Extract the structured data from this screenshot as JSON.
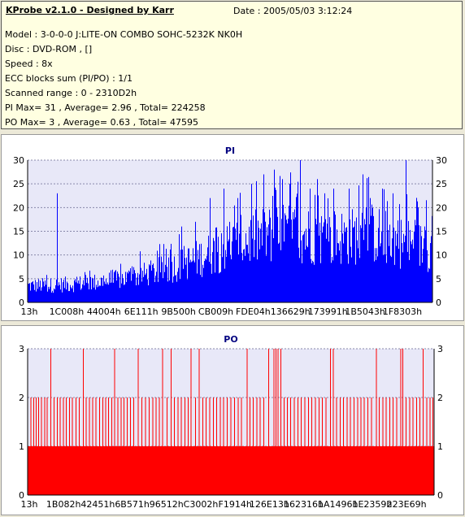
{
  "header": {
    "title": "KProbe v2.1.0 - Designed by Karr",
    "date": "Date : 2005/05/03 3:12:24",
    "lines": [
      "Model : 3-0-0-0 J:LITE-ON COMBO SOHC-5232K NK0H",
      "Disc : DVD-ROM ,  []",
      "Speed : 8x",
      "ECC blocks sum (PI/PO) : 1/1",
      "Scanned range : 0 - 2310D2h",
      "PI Max= 31 , Average= 2.96 , Total= 224258",
      "PO Max= 3 , Average= 0.63 , Total= 47595"
    ]
  },
  "colors": {
    "pi": "#0000ff",
    "po": "#ff0000",
    "plot_bg": "#e8e8f8",
    "grid": "#8888aa"
  },
  "chart_data": [
    {
      "type": "bar",
      "title": "PI",
      "xlabel": "",
      "ylabel": "",
      "ylim": [
        0,
        30
      ],
      "y_ticks": [
        0,
        5,
        10,
        15,
        20,
        25,
        30
      ],
      "x_tick_labels": [
        "13h",
        "1C008h",
        "44004h",
        "6E111h",
        "9B500h",
        "CB009h",
        "FDE04h",
        "136629h",
        "173991h",
        "1B5043h",
        "1F8303h"
      ],
      "profile": [
        [
          0,
          3.5
        ],
        [
          5,
          3.6
        ],
        [
          10,
          3.8
        ],
        [
          15,
          4.1
        ],
        [
          20,
          4.5
        ],
        [
          25,
          5.2
        ],
        [
          30,
          6.1
        ],
        [
          35,
          7.2
        ],
        [
          40,
          8.6
        ],
        [
          45,
          10.3
        ],
        [
          50,
          12.0
        ],
        [
          55,
          13.4
        ],
        [
          60,
          14.3
        ],
        [
          65,
          14.6
        ],
        [
          70,
          14.2
        ],
        [
          75,
          13.6
        ],
        [
          80,
          13.9
        ],
        [
          85,
          14.6
        ],
        [
          90,
          13.2
        ],
        [
          95,
          12.0
        ],
        [
          100,
          11.5
        ]
      ],
      "peaks": [
        [
          7.3,
          23
        ],
        [
          67.4,
          31
        ],
        [
          71.7,
          26
        ],
        [
          61.0,
          28
        ],
        [
          48.4,
          24
        ],
        [
          58.3,
          27
        ],
        [
          64.7,
          25
        ],
        [
          75.6,
          24
        ],
        [
          79.5,
          24
        ],
        [
          84.7,
          22
        ],
        [
          87.8,
          24
        ],
        [
          93.5,
          30
        ],
        [
          45.0,
          22
        ],
        [
          52.0,
          22
        ],
        [
          55.4,
          25
        ],
        [
          63.0,
          26
        ],
        [
          69.9,
          24
        ],
        [
          73.4,
          23
        ],
        [
          82.9,
          27
        ],
        [
          90.3,
          23
        ],
        [
          96.5,
          20
        ],
        [
          41.5,
          17
        ],
        [
          38.0,
          16
        ]
      ]
    },
    {
      "type": "bar",
      "title": "PO",
      "xlabel": "",
      "ylabel": "",
      "ylim": [
        0,
        3
      ],
      "y_ticks": [
        0,
        1,
        2,
        3
      ],
      "x_tick_labels": [
        "13h",
        "1B082h",
        "42451h",
        "6B571h",
        "96512h",
        "C3002h",
        "F1914h",
        "126E13h",
        "162316h",
        "1A1496h",
        "1E2359h",
        "223E69h"
      ],
      "baseline": 1,
      "spikes_3": [
        5.6,
        13.6,
        21.3,
        27.1,
        33.1,
        35.2,
        40.1,
        42.1,
        53.9,
        59.2,
        60.5,
        61.0,
        61.5,
        62.2,
        74.4,
        75.1,
        85.7,
        91.7,
        92.2,
        97.2
      ],
      "spikes_2": [
        0.7,
        1.4,
        2.0,
        2.6,
        3.3,
        4.1,
        4.7,
        6.4,
        7.2,
        7.9,
        8.7,
        9.4,
        10.2,
        10.9,
        11.8,
        12.6,
        14.3,
        15.1,
        15.9,
        16.7,
        17.6,
        18.4,
        19.1,
        19.8,
        20.6,
        22.1,
        22.9,
        23.6,
        24.4,
        25.2,
        26.0,
        28.0,
        28.9,
        29.8,
        30.7,
        31.5,
        32.3,
        34.2,
        36.0,
        36.9,
        37.7,
        38.6,
        39.4,
        41.2,
        43.0,
        43.8,
        44.7,
        45.6,
        46.4,
        47.3,
        48.1,
        49.0,
        49.9,
        50.8,
        51.7,
        52.5,
        54.6,
        55.4,
        56.3,
        57.1,
        58.0,
        63.0,
        63.8,
        64.6,
        65.5,
        66.4,
        67.2,
        68.1,
        69.0,
        69.8,
        70.7,
        71.6,
        72.4,
        73.3,
        75.9,
        76.8,
        77.6,
        78.5,
        79.3,
        80.2,
        81.1,
        81.9,
        82.7,
        83.6,
        84.5,
        86.4,
        87.3,
        88.1,
        89.0,
        89.8,
        90.7,
        93.0,
        93.9,
        94.7,
        95.6,
        96.4,
        98.1,
        98.9,
        99.6
      ]
    }
  ]
}
